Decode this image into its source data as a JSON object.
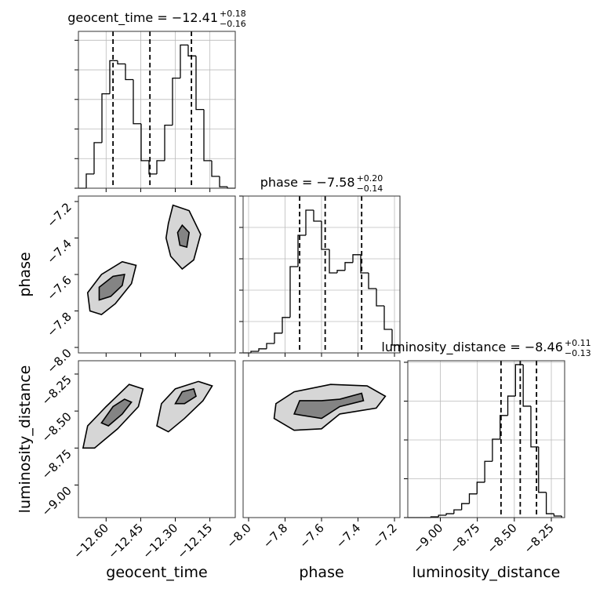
{
  "chart_data": {
    "type": "corner",
    "params": [
      {
        "label": "geocent_time",
        "title": "geocent_time = −12.41",
        "upper": "+0.18",
        "lower": "−0.16",
        "lim": [
          -12.72,
          -12.04
        ],
        "ticks": [
          {
            "value": -12.6,
            "label": "−12.60"
          },
          {
            "value": -12.45,
            "label": "−12.45"
          },
          {
            "value": -12.3,
            "label": "−12.30"
          },
          {
            "value": -12.15,
            "label": "−12.15"
          }
        ],
        "bins": [
          -12.72,
          -12.686,
          -12.652,
          -12.618,
          -12.584,
          -12.55,
          -12.516,
          -12.482,
          -12.448,
          -12.414,
          -12.38,
          -12.346,
          -12.312,
          -12.278,
          -12.244,
          -12.21,
          -12.176,
          -12.142,
          -12.108,
          -12.074,
          -12.04
        ],
        "counts": [
          0,
          0.48,
          1.54,
          3.19,
          4.31,
          4.2,
          3.67,
          2.18,
          0.93,
          0.48,
          0.93,
          2.13,
          3.72,
          4.84,
          4.47,
          2.66,
          0.93,
          0.4,
          0.05,
          0
        ],
        "hist_ylim": [
          0,
          5.3
        ],
        "hist_yticks": [
          0,
          1,
          2,
          3,
          4,
          5
        ],
        "quantiles": [
          -12.57,
          -12.41,
          -12.23
        ]
      },
      {
        "label": "phase",
        "title": "phase = −7.58",
        "upper": "+0.20",
        "lower": "−0.14",
        "lim": [
          -8.03,
          -7.17
        ],
        "ticks": [
          {
            "value": -8.0,
            "label": "−8.0"
          },
          {
            "value": -7.8,
            "label": "−7.8"
          },
          {
            "value": -7.6,
            "label": "−7.6"
          },
          {
            "value": -7.4,
            "label": "−7.4"
          },
          {
            "value": -7.2,
            "label": "−7.2"
          }
        ],
        "bins": [
          -8.03,
          -7.987,
          -7.944,
          -7.901,
          -7.858,
          -7.815,
          -7.772,
          -7.729,
          -7.686,
          -7.643,
          -7.6,
          -7.557,
          -7.514,
          -7.471,
          -7.428,
          -7.385,
          -7.342,
          -7.299,
          -7.256,
          -7.213,
          -7.17
        ],
        "counts": [
          0,
          0.05,
          0.13,
          0.3,
          0.63,
          1.13,
          2.75,
          3.75,
          4.55,
          4.2,
          3.3,
          2.55,
          2.63,
          2.88,
          3.13,
          2.55,
          2.05,
          1.5,
          0.75,
          0.25
        ],
        "hist_ylim": [
          0,
          5
        ],
        "hist_yticks": [
          0,
          1,
          2,
          3,
          4,
          5
        ],
        "quantiles": [
          -7.72,
          -7.58,
          -7.38
        ]
      },
      {
        "label": "luminosity_distance",
        "title": "luminosity_distance = −8.46",
        "upper": "+0.11",
        "lower": "−0.13",
        "lim": [
          -9.22,
          -8.16
        ],
        "ticks": [
          {
            "value": -9.0,
            "label": "−9.00"
          },
          {
            "value": -8.75,
            "label": "−8.75"
          },
          {
            "value": -8.5,
            "label": "−8.50"
          },
          {
            "value": -8.25,
            "label": "−8.25"
          }
        ],
        "bins": [
          -9.22,
          -9.168,
          -9.116,
          -9.064,
          -9.012,
          -8.96,
          -8.908,
          -8.856,
          -8.804,
          -8.752,
          -8.7,
          -8.648,
          -8.596,
          -8.544,
          -8.492,
          -8.44,
          -8.388,
          -8.336,
          -8.284,
          -8.232,
          -8.18
        ],
        "counts": [
          0,
          0,
          0,
          0.02,
          0.06,
          0.1,
          0.2,
          0.36,
          0.61,
          0.91,
          1.45,
          2.02,
          2.63,
          3.13,
          3.94,
          2.87,
          1.82,
          0.65,
          0.1,
          0.04
        ],
        "hist_ylim": [
          0,
          4.04
        ],
        "hist_yticks": [
          0,
          1,
          2,
          3,
          4
        ],
        "quantiles": [
          -8.59,
          -8.46,
          -8.35
        ]
      }
    ],
    "pairs": [
      {
        "contours": [
          {
            "x": [
              -12.67,
              -12.68,
              -12.62,
              -12.53,
              -12.47,
              -12.49,
              -12.56,
              -12.62
            ],
            "y": [
              -7.8,
              -7.7,
              -7.6,
              -7.53,
              -7.55,
              -7.65,
              -7.76,
              -7.82
            ]
          },
          {
            "x": [
              -12.63,
              -12.63,
              -12.57,
              -12.52,
              -12.53,
              -12.58
            ],
            "y": [
              -7.74,
              -7.67,
              -7.61,
              -7.6,
              -7.66,
              -7.72
            ]
          },
          {
            "x": [
              -12.33,
              -12.31,
              -12.24,
              -12.19,
              -12.22,
              -12.27,
              -12.32,
              -12.34
            ],
            "y": [
              -7.32,
              -7.22,
              -7.25,
              -7.38,
              -7.52,
              -7.57,
              -7.5,
              -7.4
            ]
          },
          {
            "x": [
              -12.29,
              -12.27,
              -12.24,
              -12.25,
              -12.28
            ],
            "y": [
              -7.37,
              -7.33,
              -7.37,
              -7.45,
              -7.44
            ]
          }
        ]
      },
      {
        "contours": [
          {
            "x": [
              -12.7,
              -12.68,
              -12.6,
              -12.5,
              -12.44,
              -12.46,
              -12.55,
              -12.65
            ],
            "y": [
              -8.75,
              -8.6,
              -8.47,
              -8.32,
              -8.35,
              -8.47,
              -8.62,
              -8.75
            ]
          },
          {
            "x": [
              -12.62,
              -12.57,
              -12.52,
              -12.49,
              -12.53,
              -12.59
            ],
            "y": [
              -8.58,
              -8.47,
              -8.42,
              -8.44,
              -8.52,
              -8.6
            ]
          },
          {
            "x": [
              -12.38,
              -12.36,
              -12.3,
              -12.2,
              -12.14,
              -12.18,
              -12.26,
              -12.33
            ],
            "y": [
              -8.6,
              -8.45,
              -8.35,
              -8.3,
              -8.33,
              -8.43,
              -8.55,
              -8.64
            ]
          },
          {
            "x": [
              -12.3,
              -12.27,
              -12.22,
              -12.21,
              -12.26
            ],
            "y": [
              -8.45,
              -8.37,
              -8.35,
              -8.4,
              -8.45
            ]
          }
        ]
      },
      {
        "contours": [
          {
            "x": [
              -7.86,
              -7.85,
              -7.75,
              -7.55,
              -7.35,
              -7.25,
              -7.3,
              -7.5,
              -7.6,
              -7.75
            ],
            "y": [
              -8.55,
              -8.45,
              -8.37,
              -8.32,
              -8.33,
              -8.4,
              -8.48,
              -8.52,
              -8.62,
              -8.63
            ]
          },
          {
            "x": [
              -7.75,
              -7.72,
              -7.6,
              -7.5,
              -7.38,
              -7.37,
              -7.5,
              -7.6
            ],
            "y": [
              -8.52,
              -8.43,
              -8.43,
              -8.42,
              -8.38,
              -8.43,
              -8.47,
              -8.55
            ]
          }
        ]
      }
    ]
  }
}
